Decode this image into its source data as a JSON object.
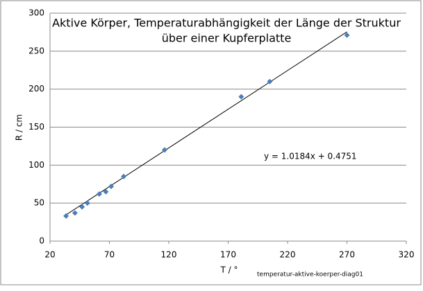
{
  "chart_data": {
    "type": "scatter",
    "title": [
      "Aktive Körper, Temperaturabhängigkeit der Länge der Struktur",
      "über einer Kupferplatte"
    ],
    "x_label": "T / °",
    "y_label": "R / cm",
    "x": [
      33.5,
      41,
      47,
      51.5,
      61.5,
      67,
      71.5,
      82,
      116.5,
      181,
      205,
      270
    ],
    "series": [
      {
        "color": "#4a7ebb",
        "values": [
          33,
          37,
          45,
          50,
          62,
          65,
          72,
          85,
          120,
          190,
          210,
          271
        ]
      }
    ],
    "trendline": {
      "slope": 1.0184,
      "intercept": 0.4751,
      "label": "y = 1.0184x + 0.4751",
      "color": "#000000"
    },
    "xlim": [
      20,
      320
    ],
    "xticks": [
      20,
      70,
      120,
      170,
      220,
      270,
      320
    ],
    "ylim": [
      0,
      300
    ],
    "yticks": [
      0,
      50,
      100,
      150,
      200,
      250,
      300
    ],
    "grid": true,
    "footnote": "temperatur-aktive-koerper-diag01"
  }
}
